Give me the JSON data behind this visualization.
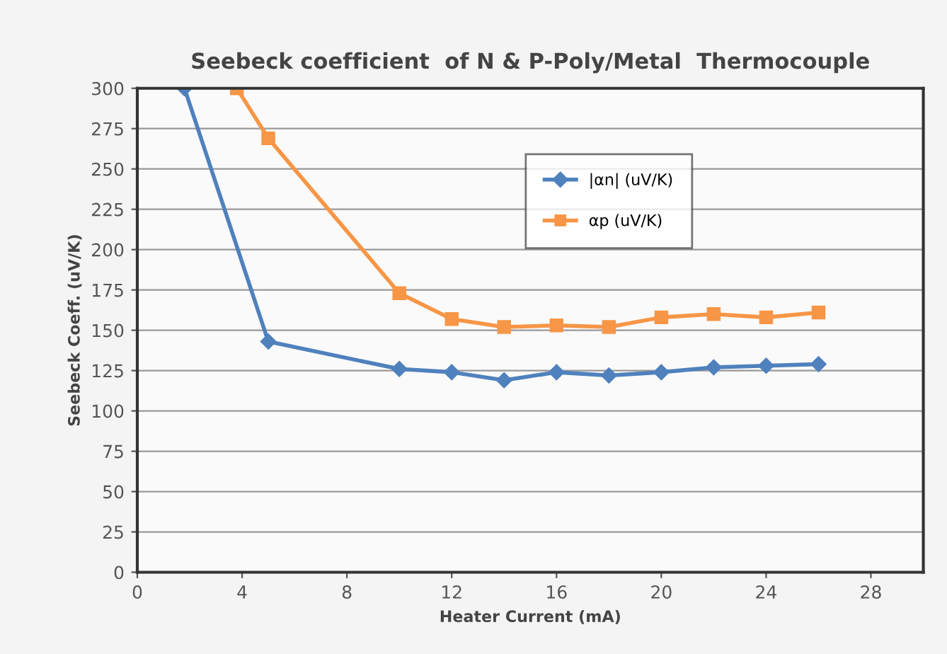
{
  "chart_data": {
    "type": "line",
    "title": "Seebeck coefficient  of N & P-Poly/Metal  Thermocouple",
    "xlabel": "Heater Current (mA)",
    "ylabel": "Seebeck Coeff. (uV/K)",
    "series": [
      {
        "name": "|αn| (uV/K)",
        "color": "#4f81bd",
        "marker": "diamond",
        "x": [
          1.8,
          5,
          10,
          12,
          14,
          16,
          18,
          20,
          22,
          24,
          26
        ],
        "values": [
          300,
          143,
          126,
          124,
          119,
          124,
          122,
          124,
          127,
          128,
          129
        ]
      },
      {
        "name": "αp (uV/K)",
        "color": "#f79646",
        "marker": "square",
        "x": [
          3.8,
          5,
          10,
          12,
          14,
          16,
          18,
          20,
          22,
          24,
          26
        ],
        "values": [
          300,
          269,
          173,
          157,
          152,
          153,
          152,
          158,
          160,
          158,
          161
        ]
      }
    ],
    "xlim": [
      0,
      30
    ],
    "xticks": [
      0,
      4,
      8,
      12,
      16,
      20,
      24,
      28
    ],
    "ylim": [
      0,
      300
    ],
    "yticks": [
      0,
      25,
      50,
      75,
      100,
      125,
      150,
      175,
      200,
      225,
      250,
      275,
      300
    ],
    "grid": "y",
    "legend": "top",
    "line_style": "solid"
  }
}
